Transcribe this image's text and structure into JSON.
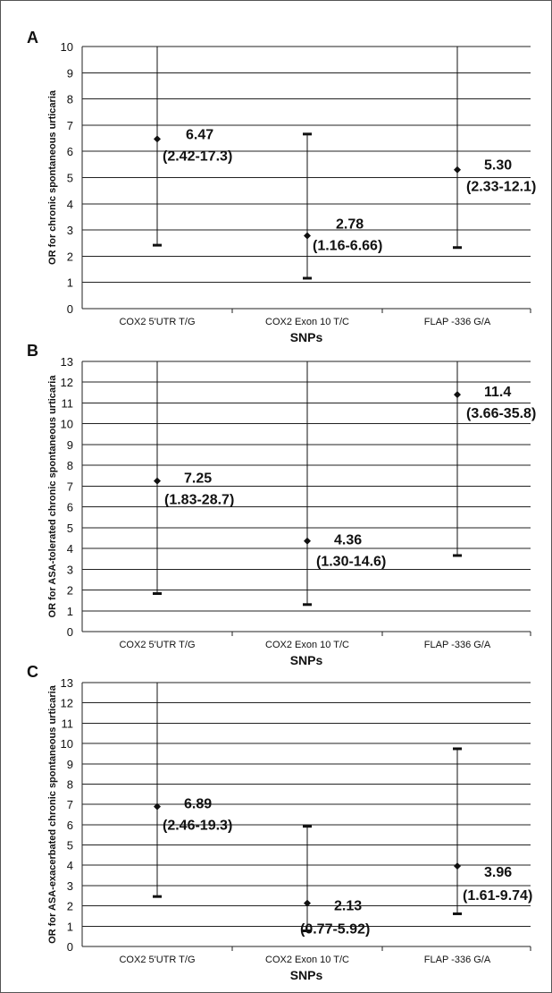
{
  "chart_data": [
    {
      "type": "scatter",
      "panel_label": "A",
      "xlabel": "SNPs",
      "ylabel": "OR for chronic spontaneous urticaria",
      "ylim": [
        0,
        10
      ],
      "categories": [
        "COX2 5'UTR T/G",
        "COX2 Exon 10 T/C",
        "FLAP -336 G/A"
      ],
      "points": [
        {
          "or": 6.47,
          "low": 2.42,
          "high": 17.3,
          "label": "6.47",
          "ci_label": "(2.42-17.3)"
        },
        {
          "or": 2.78,
          "low": 1.16,
          "high": 6.66,
          "label": "2.78",
          "ci_label": "(1.16-6.66)"
        },
        {
          "or": 5.3,
          "low": 2.33,
          "high": 12.1,
          "label": "5.30",
          "ci_label": "(2.33-12.1)"
        }
      ],
      "grid": true
    },
    {
      "type": "scatter",
      "panel_label": "B",
      "xlabel": "SNPs",
      "ylabel": "OR for ASA-tolerated chronic spontaneous urticaria",
      "ylim": [
        0,
        13
      ],
      "categories": [
        "COX2 5'UTR T/G",
        "COX2 Exon 10 T/C",
        "FLAP -336 G/A"
      ],
      "points": [
        {
          "or": 7.25,
          "low": 1.83,
          "high": 28.7,
          "label": "7.25",
          "ci_label": "(1.83-28.7)"
        },
        {
          "or": 4.36,
          "low": 1.3,
          "high": 14.6,
          "label": "4.36",
          "ci_label": "(1.30-14.6)"
        },
        {
          "or": 11.4,
          "low": 3.66,
          "high": 35.8,
          "label": "11.4",
          "ci_label": "(3.66-35.8)"
        }
      ],
      "grid": true
    },
    {
      "type": "scatter",
      "panel_label": "C",
      "xlabel": "SNPs",
      "ylabel": "OR for ASA-exacerbated chronic spontaneous urticaria",
      "ylim": [
        0,
        13
      ],
      "categories": [
        "COX2 5'UTR T/G",
        "COX2 Exon 10 T/C",
        "FLAP -336 G/A"
      ],
      "points": [
        {
          "or": 6.89,
          "low": 2.46,
          "high": 19.3,
          "label": "6.89",
          "ci_label": "(2.46-19.3)"
        },
        {
          "or": 2.13,
          "low": 0.77,
          "high": 5.92,
          "label": "2.13",
          "ci_label": "(0.77-5.92)"
        },
        {
          "or": 3.96,
          "low": 1.61,
          "high": 9.74,
          "label": "3.96",
          "ci_label": "(1.61-9.74)"
        }
      ],
      "grid": true
    }
  ]
}
